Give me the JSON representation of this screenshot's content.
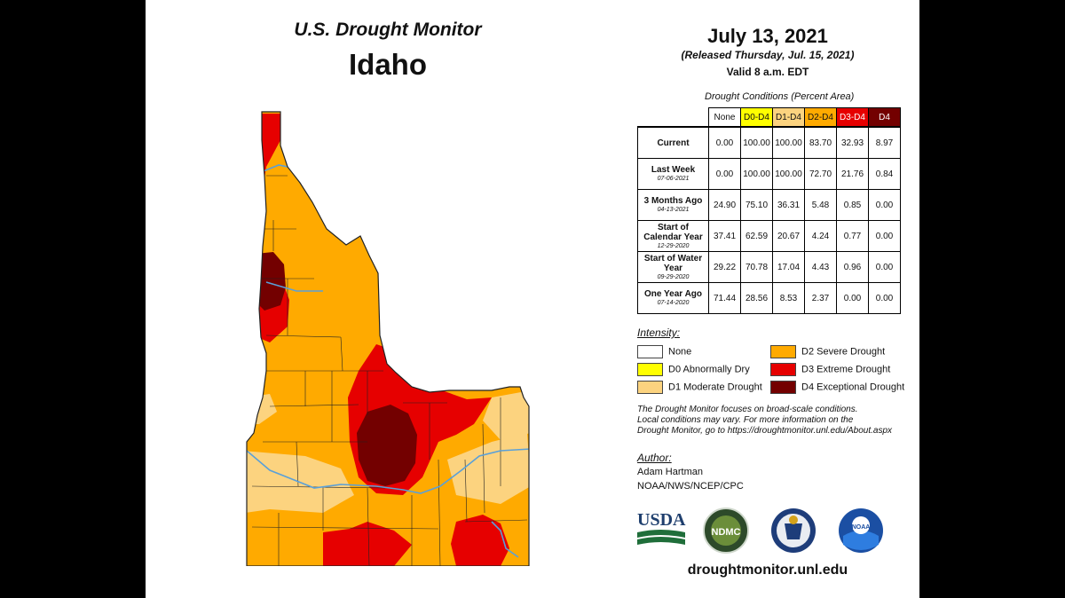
{
  "header": {
    "title": "U.S. Drought Monitor",
    "state": "Idaho",
    "date": "July 13, 2021",
    "released": "(Released Thursday, Jul. 15, 2021)",
    "valid": "Valid 8 a.m. EDT"
  },
  "table": {
    "caption": "Drought Conditions (Percent Area)",
    "columns": [
      {
        "label": "None",
        "color": "#ffffff"
      },
      {
        "label": "D0-D4",
        "color": "#ffff00"
      },
      {
        "label": "D1-D4",
        "color": "#fcd37f"
      },
      {
        "label": "D2-D4",
        "color": "#ffaa00"
      },
      {
        "label": "D3-D4",
        "color": "#e60000"
      },
      {
        "label": "D4",
        "color": "#730000"
      }
    ],
    "rows": [
      {
        "label": "Current",
        "sub": "",
        "values": [
          "0.00",
          "100.00",
          "100.00",
          "83.70",
          "32.93",
          "8.97"
        ]
      },
      {
        "label": "Last Week",
        "sub": "07-06-2021",
        "values": [
          "0.00",
          "100.00",
          "100.00",
          "72.70",
          "21.76",
          "0.84"
        ]
      },
      {
        "label": "3 Months Ago",
        "sub": "04-13-2021",
        "values": [
          "24.90",
          "75.10",
          "36.31",
          "5.48",
          "0.85",
          "0.00"
        ]
      },
      {
        "label": "Start of Calendar Year",
        "sub": "12-29-2020",
        "values": [
          "37.41",
          "62.59",
          "20.67",
          "4.24",
          "0.77",
          "0.00"
        ]
      },
      {
        "label": "Start of Water Year",
        "sub": "09-29-2020",
        "values": [
          "29.22",
          "70.78",
          "17.04",
          "4.43",
          "0.96",
          "0.00"
        ]
      },
      {
        "label": "One Year Ago",
        "sub": "07-14-2020",
        "values": [
          "71.44",
          "28.56",
          "8.53",
          "2.37",
          "0.00",
          "0.00"
        ]
      }
    ]
  },
  "intensity": {
    "title": "Intensity:",
    "items": [
      {
        "label": "None",
        "color": "#ffffff"
      },
      {
        "label": "D0 Abnormally Dry",
        "color": "#ffff00"
      },
      {
        "label": "D1 Moderate Drought",
        "color": "#fcd37f"
      },
      {
        "label": "D2 Severe Drought",
        "color": "#ffaa00"
      },
      {
        "label": "D3 Extreme Drought",
        "color": "#e60000"
      },
      {
        "label": "D4 Exceptional Drought",
        "color": "#730000"
      }
    ]
  },
  "note": {
    "line1": "The Drought Monitor focuses on broad-scale conditions.",
    "line2": "Local conditions may vary. For more information on the",
    "line3": "Drought Monitor, go to https://droughtmonitor.unl.edu/About.aspx"
  },
  "author": {
    "title": "Author:",
    "name": "Adam Hartman",
    "org": "NOAA/NWS/NCEP/CPC"
  },
  "logos": {
    "usda": "USDA",
    "ndmc": "NDMC",
    "noaa": "NOAA"
  },
  "site": "droughtmonitor.unl.edu",
  "map_colors": {
    "d1": "#fcd37f",
    "d2": "#ffaa00",
    "d3": "#e60000",
    "d4": "#730000",
    "water": "#5aa0d8"
  }
}
